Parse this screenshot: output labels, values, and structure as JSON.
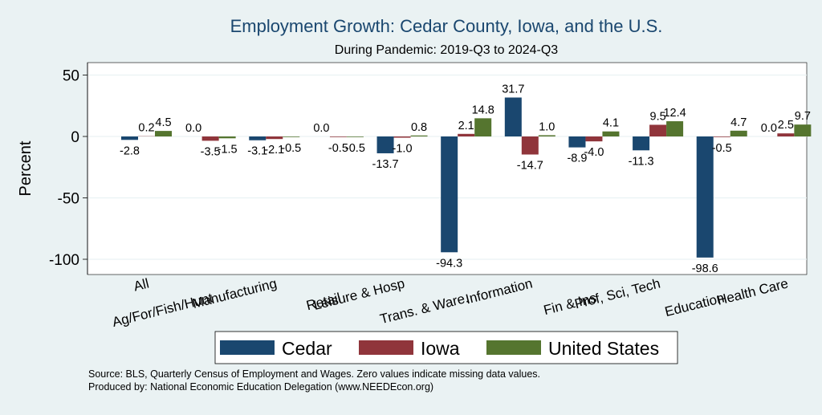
{
  "chart_data": {
    "type": "bar",
    "title": "Employment Growth: Cedar County, Iowa, and the U.S.",
    "subtitle": "During Pandemic: 2019-Q3 to 2024-Q3",
    "xlabel": "",
    "ylabel": "Percent",
    "ylim": [
      -105,
      52
    ],
    "yticks": [
      50,
      0,
      -50,
      -100
    ],
    "ytick_labels": [
      "50",
      "0",
      "-50",
      "-100"
    ],
    "grid": true,
    "categories": [
      "All",
      "Ag/For/Fish/Hunt",
      "Manufacturing",
      "Retail",
      "Leisure & Hosp",
      "Trans. & Ware.",
      "Information",
      "Fin & Ins",
      "Prof, Sci, Tech",
      "Education",
      "Health Care"
    ],
    "series": [
      {
        "name": "Cedar",
        "color": "#1a476f",
        "values": [
          -2.8,
          0.0,
          -3.1,
          0.0,
          -13.7,
          -94.3,
          31.7,
          -8.9,
          -11.3,
          -98.6,
          0.0
        ],
        "labels": [
          "-2.8",
          "0.0",
          "-3.1",
          "0.0",
          "-13.7",
          "-94.3",
          "31.7",
          "-8.9",
          "-11.3",
          "-98.6",
          "0.0"
        ]
      },
      {
        "name": "Iowa",
        "color": "#90353b",
        "values": [
          0.2,
          -3.5,
          -2.1,
          -0.5,
          -1.0,
          2.1,
          -14.7,
          -4.0,
          9.5,
          -0.5,
          2.5
        ],
        "labels": [
          "0.2",
          "-3.5",
          "-2.1",
          "-0.5",
          "-1.0",
          "2.1",
          "-14.7",
          "-4.0",
          "9.5",
          "-0.5",
          "2.5"
        ]
      },
      {
        "name": "United States",
        "color": "#55752f",
        "values": [
          4.5,
          -1.5,
          -0.5,
          -0.5,
          0.8,
          14.8,
          1.0,
          4.1,
          12.4,
          4.7,
          9.7
        ],
        "labels": [
          "4.5",
          "-1.5",
          "-0.5",
          "-0.5",
          "0.8",
          "14.8",
          "1.0",
          "4.1",
          "12.4",
          "4.7",
          "9.7"
        ]
      }
    ],
    "legend": "bottom"
  },
  "source_lines": [
    "Source: BLS, Quarterly Census of Employment and Wages. Zero values indicate missing data values.",
    "Produced by: National Economic Education Delegation (www.NEEDEcon.org)"
  ]
}
